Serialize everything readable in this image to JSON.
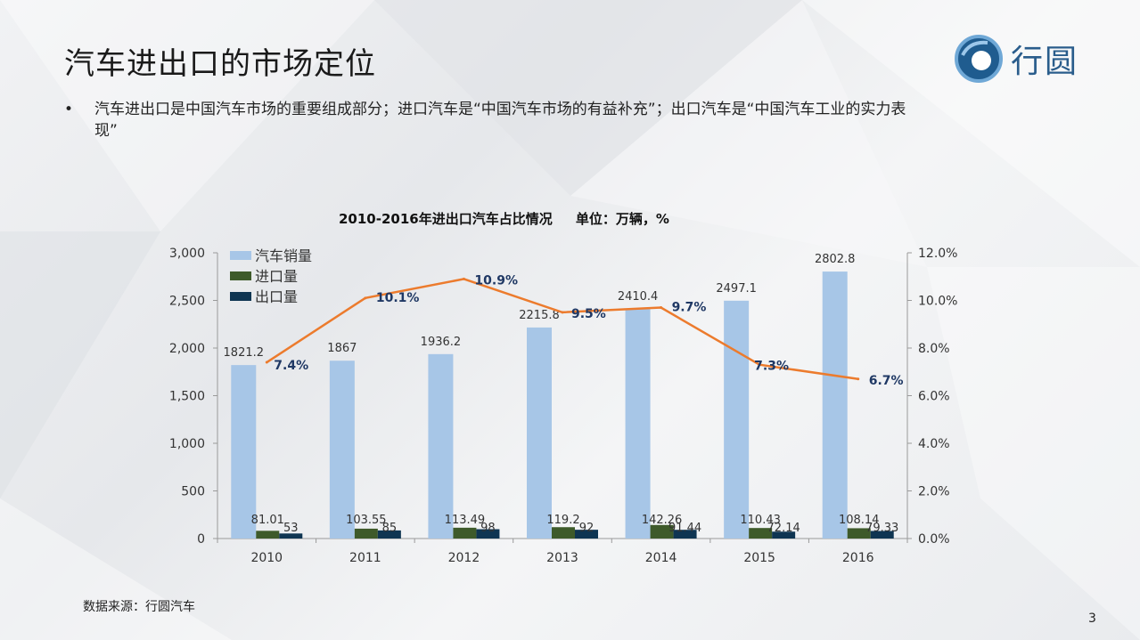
{
  "slide": {
    "title": "汽车进出口的市场定位",
    "bullet_marker": "•",
    "bullet_text": "汽车进出口是中国汽车市场的重要组成部分；进口汽车是“中国汽车市场的有益补充”；出口汽车是“中国汽车工业的实力表现”",
    "source": "数据来源：行圆汽车",
    "page_number": "3",
    "logo_text": "行圆"
  },
  "colors": {
    "sales": "#a7c6e7",
    "import": "#3e5a2a",
    "export": "#0f3552",
    "ratio": "#ec7b2d",
    "ratio_label": "#1f3864"
  },
  "chart_data": {
    "type": "bar",
    "title": "2010-2016年进出口汽车占比情况     单位：万辆，%",
    "categories": [
      "2010",
      "2011",
      "2012",
      "2013",
      "2014",
      "2015",
      "2016"
    ],
    "series": [
      {
        "name": "汽车销量",
        "type": "bar",
        "axis": "left",
        "values": [
          1821.2,
          1867,
          1936.2,
          2215.8,
          2410.4,
          2497.1,
          2802.8
        ],
        "labels": [
          "1821.2",
          "1867",
          "1936.2",
          "2215.8",
          "2410.4",
          "2497.1",
          "2802.8"
        ]
      },
      {
        "name": "进口量",
        "type": "bar",
        "axis": "left",
        "values": [
          81.01,
          103.55,
          113.49,
          119.2,
          142.26,
          110.43,
          108.14
        ],
        "labels": [
          "81.01",
          "103.55",
          "113.49",
          "119.2",
          "142.26",
          "110.43",
          "108.14"
        ]
      },
      {
        "name": "出口量",
        "type": "bar",
        "axis": "left",
        "values": [
          53,
          85,
          98,
          92,
          91.44,
          72.14,
          79.33
        ],
        "labels": [
          "53",
          "85",
          "98",
          "92",
          "91.44",
          "72.14",
          "79.33"
        ]
      },
      {
        "type": "line",
        "axis": "right",
        "values": [
          7.4,
          10.1,
          10.9,
          9.5,
          9.7,
          7.3,
          6.7
        ],
        "labels": [
          "7.4%",
          "10.1%",
          "10.9%",
          "9.5%",
          "9.7%",
          "7.3%",
          "6.7%"
        ]
      }
    ],
    "ylim": [
      0,
      3000
    ],
    "y_ticks": [
      "0",
      "500",
      "1,000",
      "1,500",
      "2,000",
      "2,500",
      "3,000"
    ],
    "y2lim": [
      0,
      12
    ],
    "y2_ticks": [
      "0.0%",
      "2.0%",
      "4.0%",
      "6.0%",
      "8.0%",
      "10.0%",
      "12.0%"
    ],
    "grid": false,
    "legend": "top-left"
  }
}
